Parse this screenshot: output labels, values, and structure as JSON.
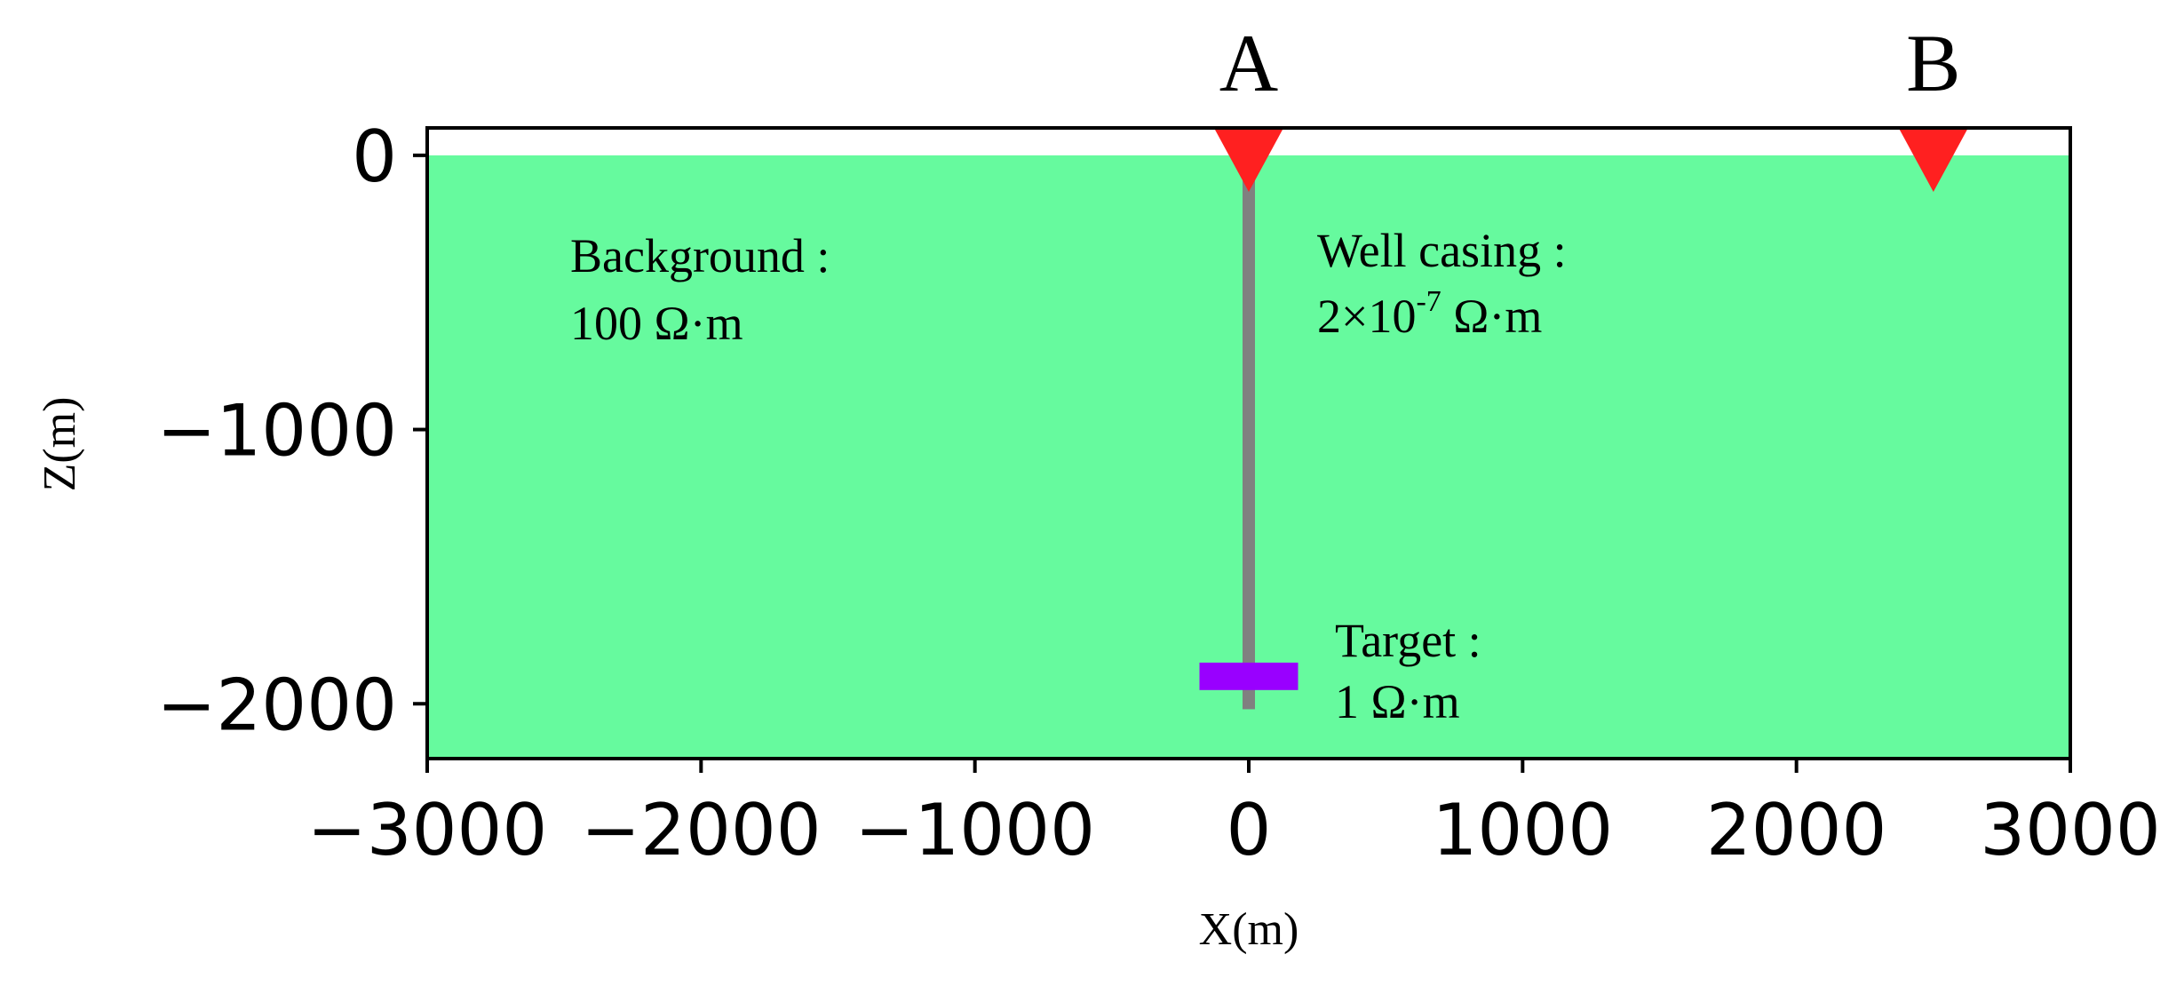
{
  "figure": {
    "x_axis": {
      "label": "X(m)",
      "range": [
        -3000,
        3000
      ],
      "ticks": [
        {
          "value": -3000,
          "label": "−3000"
        },
        {
          "value": -2000,
          "label": "−2000"
        },
        {
          "value": -1000,
          "label": "−1000"
        },
        {
          "value": 0,
          "label": "0"
        },
        {
          "value": 1000,
          "label": "1000"
        },
        {
          "value": 2000,
          "label": "2000"
        },
        {
          "value": 3000,
          "label": "3000"
        }
      ]
    },
    "z_axis": {
      "label": "Z(m)",
      "range": [
        -2200,
        100
      ],
      "ticks": [
        {
          "value": 0,
          "label": "0"
        },
        {
          "value": -1000,
          "label": "−1000"
        },
        {
          "value": -2000,
          "label": "−2000"
        }
      ]
    },
    "electrodes": [
      {
        "name": "A",
        "x": 0
      },
      {
        "name": "B",
        "x": 2500
      }
    ],
    "regions": {
      "background": {
        "name": "Background :",
        "value": "100 Ω·m",
        "color": "#66fa9e"
      },
      "well_casing": {
        "name": "Well casing :",
        "value_base": "2×10",
        "value_exp": "-7",
        "value_unit": " Ω·m",
        "color": "#808080",
        "x": 0,
        "z_top": 0,
        "z_bottom": -2020
      },
      "target": {
        "name": "Target :",
        "value": "1 Ω·m",
        "color": "#9900ff",
        "x_range": [
          -180,
          180
        ],
        "z_range": [
          -1850,
          -1950
        ]
      }
    },
    "electrode_color": "#ff2020"
  }
}
